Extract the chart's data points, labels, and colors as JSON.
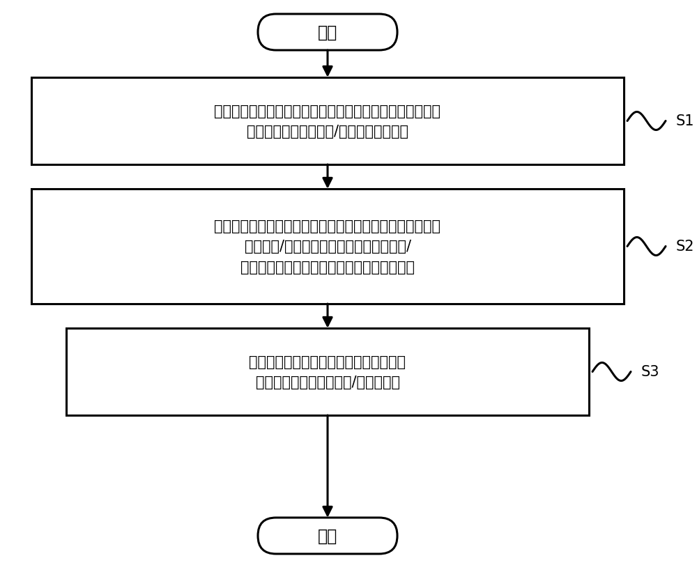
{
  "bg_color": "#ffffff",
  "line_color": "#000000",
  "text_color": "#000000",
  "fig_width": 10.0,
  "fig_height": 8.12,
  "start_label": "开始",
  "end_label": "结束",
  "box1_line1": "所述驱动控制部分接收所述深度测量装置测到的深度信息和",
  "box1_line2": "反馈装置反馈的实际收/放的线缆长度信息",
  "box2_line1": "所述驱动控制部分根据所述深度信息，和所述反馈装置反馈",
  "box2_line2": "的实际收/放的线缆长度信息，编制线缆收/",
  "box2_line3": "放控制指令，并将该控制指令发送给执行部分",
  "box3_line1": "所述执行部分执行所述驱动控制部分的控",
  "box3_line2": "制指令，并执行相应的收/放线缆操作",
  "step_labels": [
    "S1",
    "S2",
    "S3"
  ],
  "font_size_box": 15,
  "font_size_terminal": 17,
  "font_size_step": 15
}
